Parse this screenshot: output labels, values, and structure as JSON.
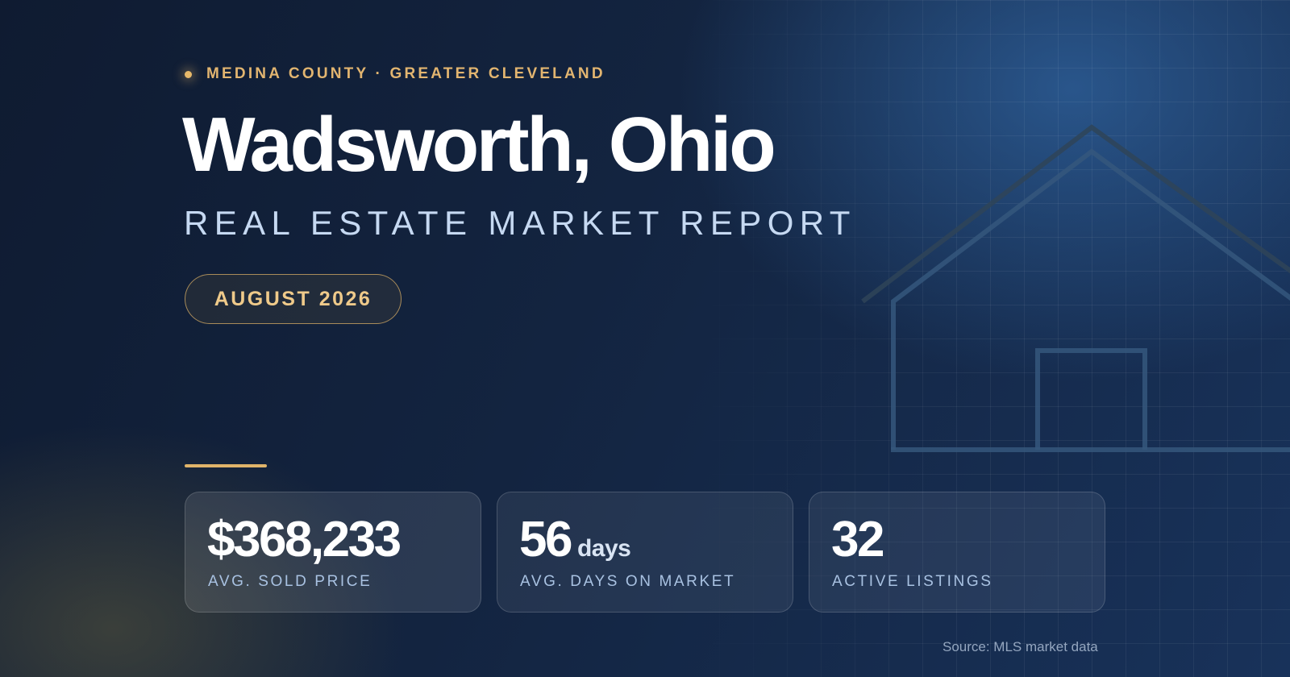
{
  "eyebrow": "MEDINA COUNTY · GREATER CLEVELAND",
  "title": "Wadsworth, Ohio",
  "subtitle": "REAL ESTATE MARKET REPORT",
  "period": "AUGUST 2026",
  "stats": [
    {
      "value": "$368,233",
      "unit": "",
      "label": "AVG. SOLD PRICE"
    },
    {
      "value": "56",
      "unit": "days",
      "label": "AVG. DAYS ON MARKET"
    },
    {
      "value": "32",
      "unit": "",
      "label": "ACTIVE LISTINGS"
    }
  ],
  "source": "Source: MLS market data",
  "icons": {
    "bullet": "dot-icon",
    "illustration": "house-outline-icon"
  },
  "colors": {
    "background": "#132440",
    "accent_gold": "#e2b570",
    "title": "#ffffff",
    "subtitle": "#c6d9f2",
    "stat_label": "#a9c2e2",
    "source": "#94a6bf"
  }
}
